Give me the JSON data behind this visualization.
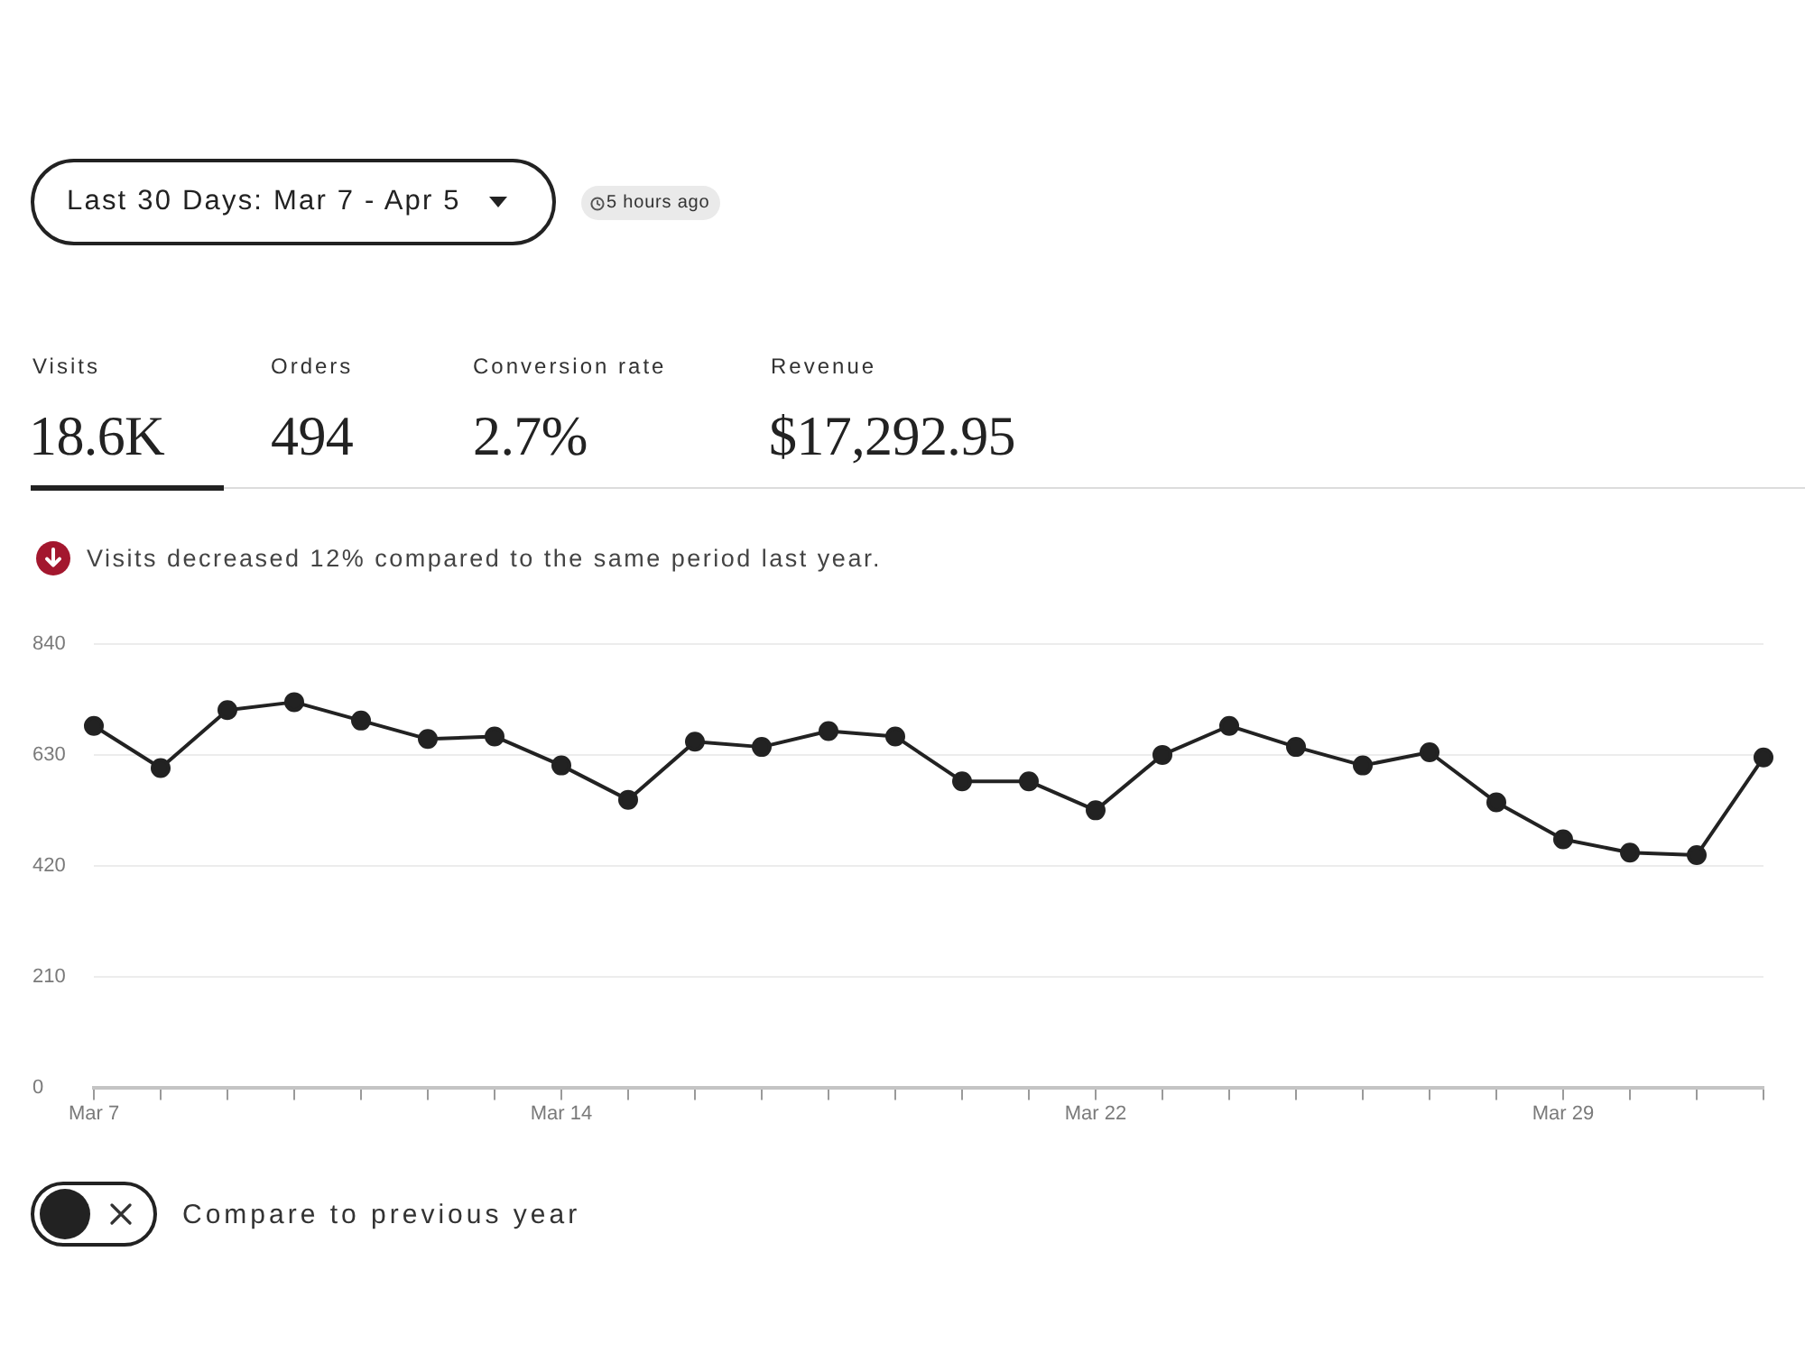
{
  "chart_data": {
    "type": "line",
    "annotations": [
      "Last 30 Days: Mar 7 - Apr 5",
      "5 hours ago",
      "Visits",
      "18.6K",
      "Orders",
      "494",
      "Conversion rate",
      "2.7%",
      "Revenue",
      "$17,292.95",
      "Visits decreased 12% compared to the same period last year.",
      "Compare to previous year"
    ],
    "categories": [
      "Mar 7",
      null,
      null,
      null,
      null,
      null,
      null,
      "Mar 14",
      null,
      null,
      null,
      null,
      null,
      null,
      null,
      "Mar 22",
      null,
      null,
      null,
      null,
      null,
      null,
      "Mar 29",
      null,
      null,
      null
    ],
    "series": [
      {
        "color": "#222222",
        "values": [
          685,
          605,
          715,
          730,
          695,
          660,
          665,
          610,
          545,
          655,
          645,
          675,
          665,
          580,
          580,
          525,
          630,
          685,
          645,
          610,
          635,
          540,
          470,
          445,
          440,
          625
        ]
      }
    ],
    "ylim": [
      0,
      840
    ],
    "yticks": [
      0,
      210,
      420,
      630,
      840
    ],
    "grid": "y",
    "marker": "circle",
    "line_style": "solid"
  }
}
